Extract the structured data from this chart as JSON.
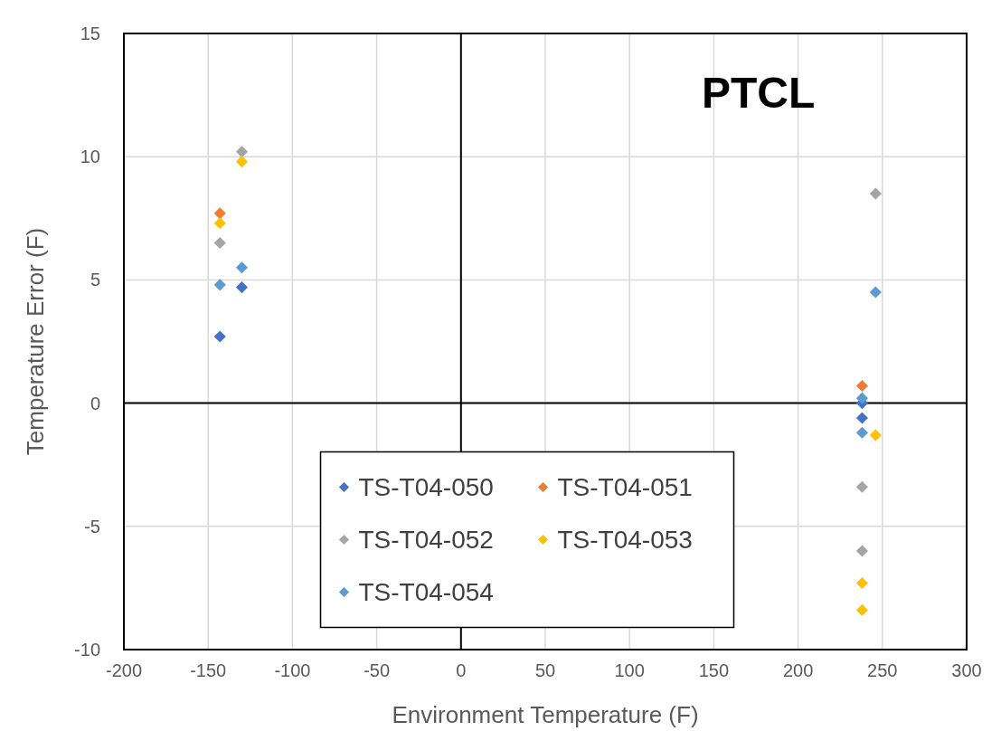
{
  "chart_data": {
    "type": "scatter",
    "title": "PTCL",
    "xlabel": "Environment Temperature (F)",
    "ylabel": "Temperature Error (F)",
    "xlim": [
      -200,
      300
    ],
    "xticks": [
      -200,
      -150,
      -100,
      -50,
      0,
      50,
      100,
      150,
      200,
      250,
      300
    ],
    "ylim": [
      -10,
      15
    ],
    "yticks": [
      -10,
      -5,
      0,
      5,
      10,
      15
    ],
    "grid": true,
    "legend": "bottom",
    "marker": "diamond",
    "series": [
      {
        "name": "TS-T04-050",
        "color": "#4472c4",
        "x": [
          -143,
          -130,
          238,
          238
        ],
        "values": [
          2.7,
          4.7,
          0.0,
          -0.6
        ]
      },
      {
        "name": "TS-T04-051",
        "color": "#ed7d31",
        "x": [
          -143,
          238
        ],
        "values": [
          7.7,
          0.7
        ]
      },
      {
        "name": "TS-T04-052",
        "color": "#a5a5a5",
        "x": [
          -143,
          -130,
          238,
          238,
          246
        ],
        "values": [
          6.5,
          10.2,
          -3.4,
          -6.0,
          8.5
        ]
      },
      {
        "name": "TS-T04-053",
        "color": "#ffc000",
        "x": [
          -143,
          -130,
          238,
          238,
          246
        ],
        "values": [
          7.3,
          9.8,
          -7.3,
          -8.4,
          -1.3
        ]
      },
      {
        "name": "TS-T04-054",
        "color": "#5b9bd5",
        "x": [
          -143,
          -130,
          238,
          238,
          246
        ],
        "values": [
          4.8,
          5.5,
          0.2,
          -1.2,
          4.5
        ]
      }
    ]
  }
}
